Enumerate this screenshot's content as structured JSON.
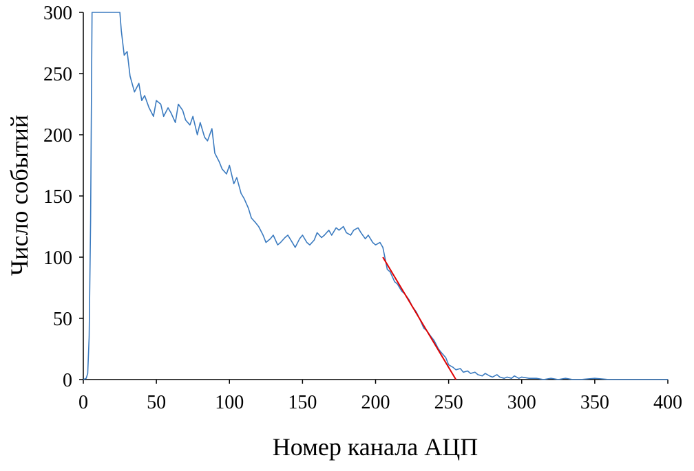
{
  "chart_data": {
    "type": "line",
    "xlabel": "Номер канала АЦП",
    "ylabel": "Число событий",
    "xlim": [
      0,
      400
    ],
    "ylim": [
      0,
      300
    ],
    "x_ticks": [
      "0",
      "50",
      "100",
      "150",
      "200",
      "250",
      "300",
      "350",
      "400"
    ],
    "y_ticks": [
      "0",
      "50",
      "100",
      "150",
      "200",
      "250",
      "300"
    ],
    "grid": false,
    "legend": "none",
    "series": [
      {
        "color": "#3a7abf",
        "x": [
          0,
          2,
          3,
          4,
          5,
          6,
          7,
          8,
          10,
          15,
          20,
          24,
          25,
          26,
          28,
          30,
          32,
          35,
          38,
          40,
          42,
          45,
          48,
          50,
          53,
          55,
          58,
          60,
          63,
          65,
          68,
          70,
          73,
          75,
          78,
          80,
          83,
          85,
          88,
          90,
          93,
          95,
          98,
          100,
          103,
          105,
          108,
          110,
          113,
          115,
          118,
          120,
          123,
          125,
          128,
          130,
          133,
          135,
          138,
          140,
          143,
          145,
          148,
          150,
          153,
          155,
          158,
          160,
          163,
          165,
          168,
          170,
          173,
          175,
          178,
          180,
          183,
          185,
          188,
          190,
          193,
          195,
          198,
          200,
          203,
          205,
          208,
          210,
          213,
          215,
          218,
          220,
          223,
          225,
          228,
          230,
          233,
          235,
          238,
          240,
          243,
          245,
          248,
          250,
          253,
          255,
          258,
          260,
          263,
          265,
          268,
          270,
          273,
          275,
          278,
          280,
          283,
          285,
          288,
          290,
          293,
          295,
          298,
          300,
          305,
          310,
          315,
          320,
          325,
          330,
          335,
          340,
          350,
          360,
          370,
          380,
          390,
          400
        ],
        "y": [
          0,
          1,
          5,
          35,
          130,
          300,
          300,
          300,
          300,
          300,
          300,
          300,
          300,
          285,
          265,
          268,
          248,
          235,
          242,
          228,
          232,
          222,
          215,
          228,
          225,
          215,
          222,
          218,
          210,
          225,
          220,
          212,
          208,
          215,
          200,
          210,
          198,
          195,
          205,
          185,
          178,
          172,
          168,
          175,
          160,
          165,
          152,
          148,
          140,
          132,
          128,
          125,
          118,
          112,
          115,
          118,
          110,
          112,
          116,
          118,
          112,
          108,
          115,
          118,
          112,
          110,
          114,
          120,
          116,
          118,
          122,
          118,
          124,
          122,
          125,
          120,
          118,
          122,
          124,
          120,
          115,
          118,
          112,
          110,
          112,
          108,
          90,
          88,
          80,
          78,
          72,
          70,
          65,
          60,
          55,
          50,
          42,
          40,
          35,
          32,
          25,
          22,
          18,
          12,
          10,
          8,
          9,
          6,
          7,
          5,
          6,
          4,
          3,
          5,
          3,
          2,
          4,
          2,
          1,
          2,
          1,
          3,
          1,
          2,
          1,
          1,
          0,
          1,
          0,
          1,
          0,
          0,
          1,
          0,
          0,
          0,
          0,
          0
        ]
      },
      {
        "color": "#e00000",
        "x": [
          205,
          255
        ],
        "y": [
          100,
          0
        ]
      }
    ]
  }
}
